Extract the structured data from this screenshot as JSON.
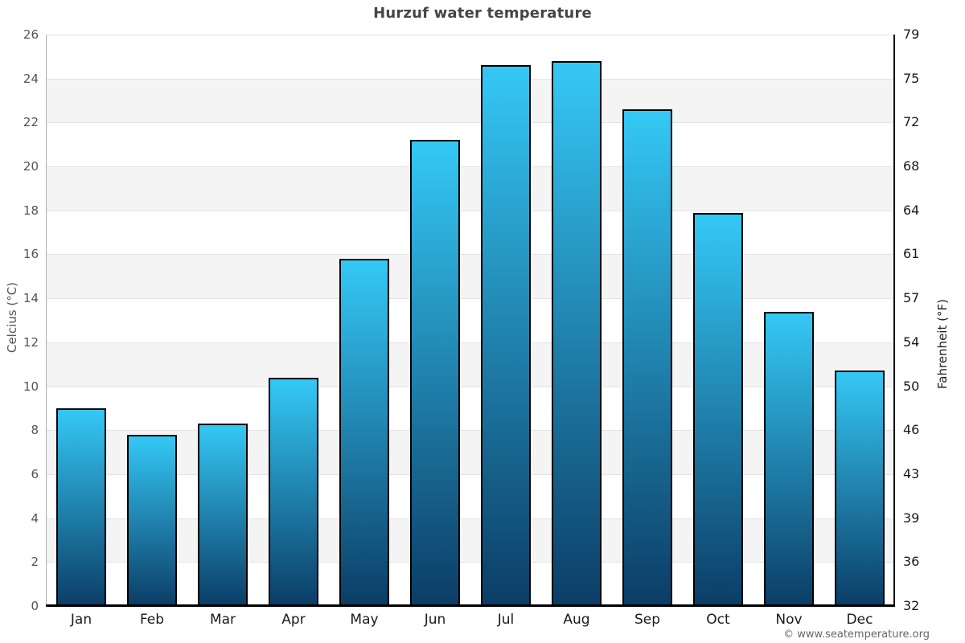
{
  "title": "Hurzuf water temperature",
  "footer": "© www.seatemperature.org",
  "chart_data": {
    "type": "bar",
    "title": "Hurzuf water temperature",
    "categories": [
      "Jan",
      "Feb",
      "Mar",
      "Apr",
      "May",
      "Jun",
      "Jul",
      "Aug",
      "Sep",
      "Oct",
      "Nov",
      "Dec"
    ],
    "values": [
      9.0,
      7.8,
      8.3,
      10.4,
      15.8,
      21.2,
      24.6,
      24.8,
      22.6,
      17.9,
      13.4,
      10.7
    ],
    "xlabel": "",
    "ylabel_left": "Celcius (°C)",
    "ylabel_right": "Fahrenheit (°F)",
    "ylim_left": [
      0,
      26
    ],
    "ytick_step_left": 2,
    "yticks_left": [
      0,
      2,
      4,
      6,
      8,
      10,
      12,
      14,
      16,
      18,
      20,
      22,
      24,
      26
    ],
    "yticks_right_labels": [
      "32",
      "36",
      "39",
      "43",
      "46",
      "50",
      "54",
      "57",
      "61",
      "64",
      "68",
      "72",
      "75",
      "79"
    ],
    "grid": "alternating-horizontal-bands",
    "legend": "none",
    "colors": {
      "band_light": "#ffffff",
      "band_dark": "#f4f4f4",
      "gridline": "#e4e4e4",
      "bar_gradient_top": "#35c8f5",
      "bar_gradient_bottom": "#0b3d66",
      "bar_border": "#000000",
      "axis_left": "#aeaeae",
      "axis_right": "#111111",
      "axis_bottom": "#000000",
      "title_text": "#454545",
      "tick_left_text": "#555555",
      "tick_right_text": "#1a1a1a"
    }
  }
}
